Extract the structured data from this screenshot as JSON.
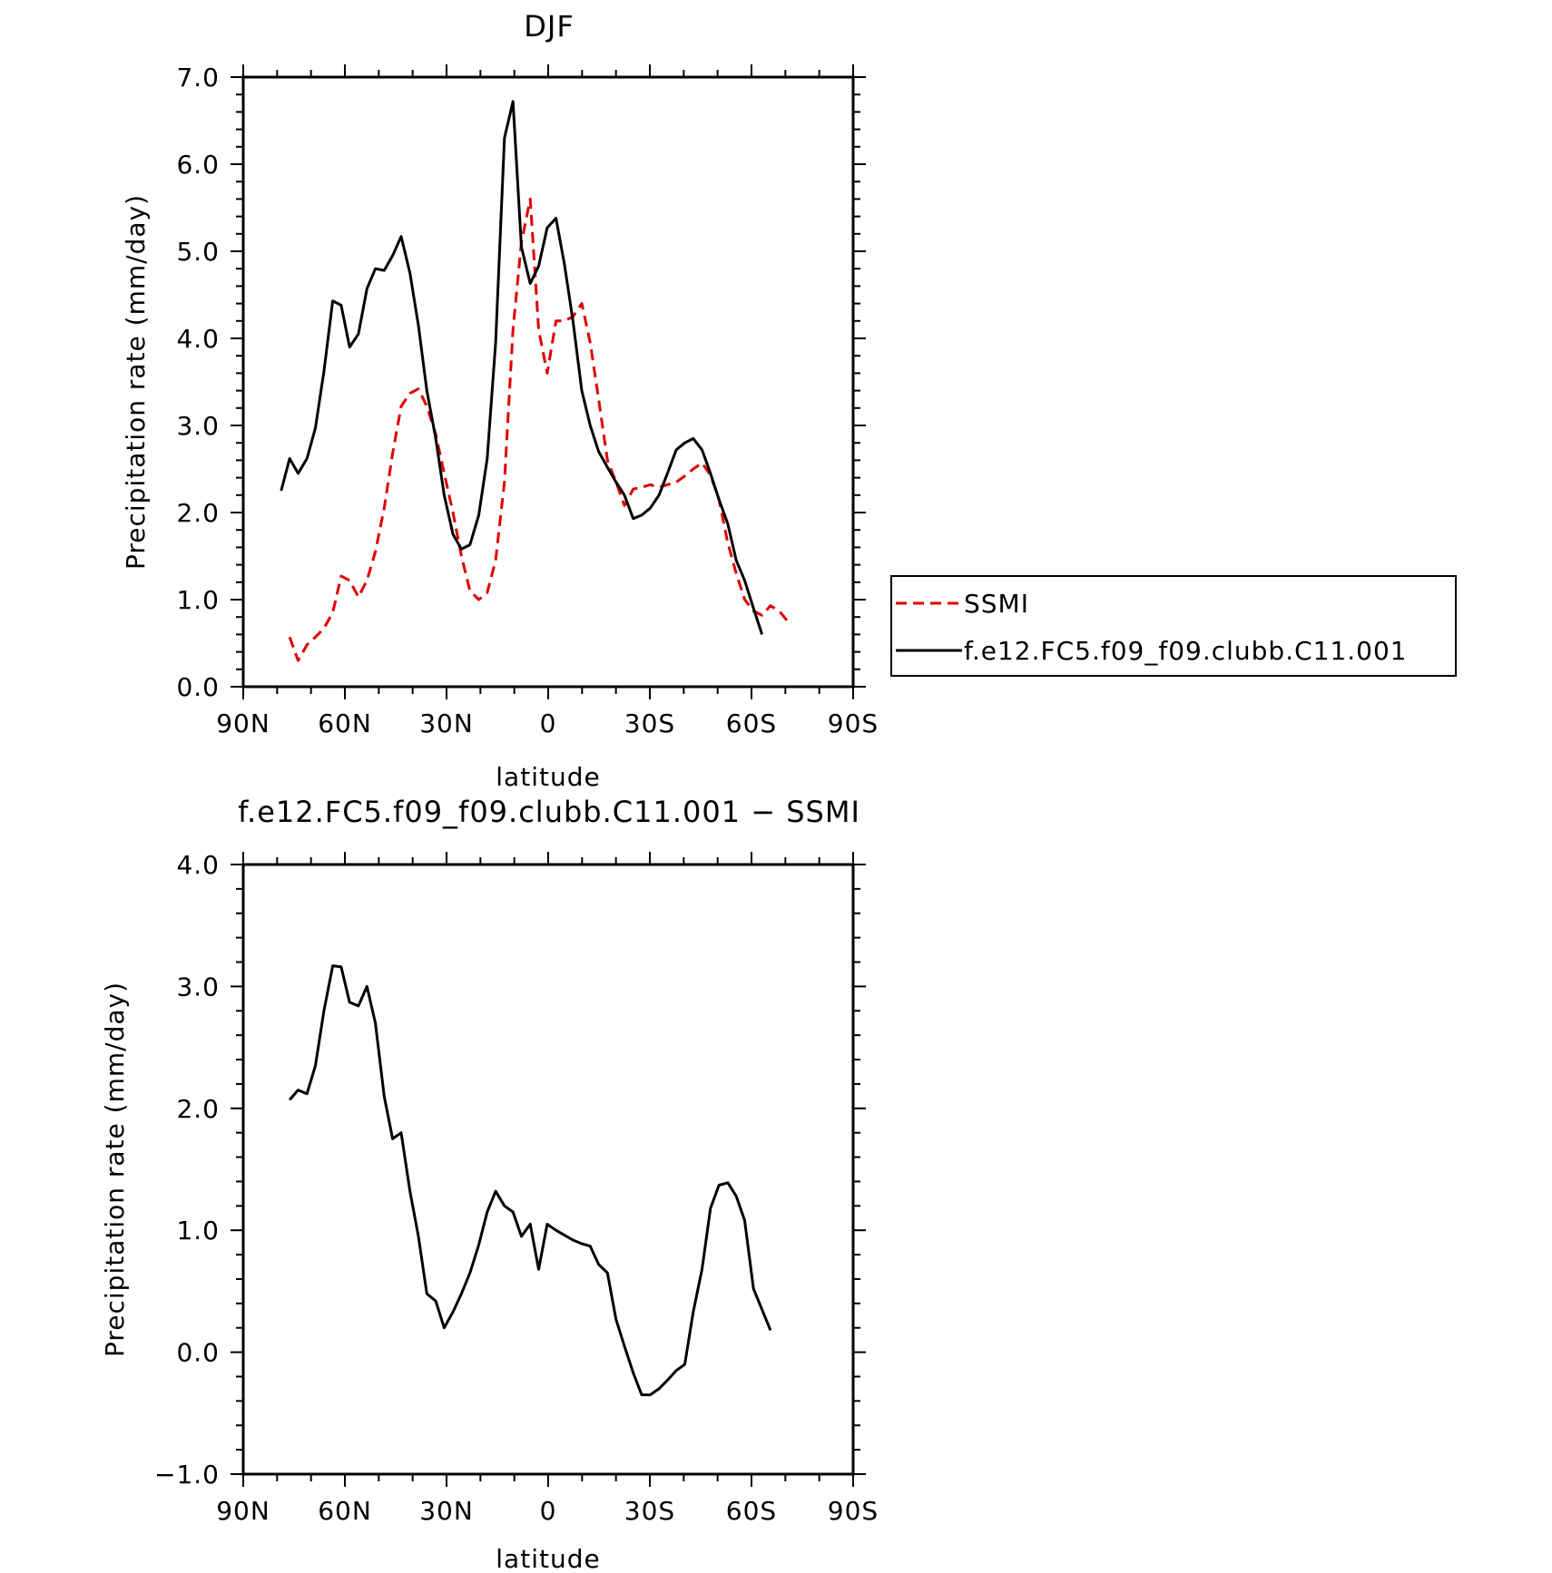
{
  "chart_data": [
    {
      "type": "line",
      "title": "DJF",
      "xlabel": "latitude",
      "ylabel": "Precipitation rate (mm/day)",
      "xlim": [
        -90,
        90
      ],
      "ylim": [
        0,
        7
      ],
      "x_ticks": [
        {
          "value": -90,
          "label": "90N"
        },
        {
          "value": -60,
          "label": "60N"
        },
        {
          "value": -30,
          "label": "30N"
        },
        {
          "value": 0,
          "label": "0"
        },
        {
          "value": 30,
          "label": "30S"
        },
        {
          "value": 60,
          "label": "60S"
        },
        {
          "value": 90,
          "label": "90S"
        }
      ],
      "y_ticks": [
        {
          "value": 0,
          "label": "0.0"
        },
        {
          "value": 1,
          "label": "1.0"
        },
        {
          "value": 2,
          "label": "2.0"
        },
        {
          "value": 3,
          "label": "3.0"
        },
        {
          "value": 4,
          "label": "4.0"
        },
        {
          "value": 5,
          "label": "5.0"
        },
        {
          "value": 6,
          "label": "6.0"
        },
        {
          "value": 7,
          "label": "7.0"
        }
      ],
      "legend": {
        "placement": "right"
      },
      "series": [
        {
          "name": "SSMI",
          "color": "#e00000",
          "style": "dashed",
          "points": [
            [
              -76.3,
              0.57
            ],
            [
              -73.8,
              0.3
            ],
            [
              -71.2,
              0.48
            ],
            [
              -68.7,
              0.57
            ],
            [
              -66.2,
              0.67
            ],
            [
              -63.6,
              0.85
            ],
            [
              -61.1,
              1.27
            ],
            [
              -58.6,
              1.22
            ],
            [
              -56.0,
              1.03
            ],
            [
              -53.5,
              1.22
            ],
            [
              -51.0,
              1.55
            ],
            [
              -48.4,
              2.05
            ],
            [
              -45.9,
              2.68
            ],
            [
              -43.4,
              3.22
            ],
            [
              -40.8,
              3.37
            ],
            [
              -38.3,
              3.42
            ],
            [
              -35.8,
              3.22
            ],
            [
              -33.2,
              2.9
            ],
            [
              -30.7,
              2.45
            ],
            [
              -28.1,
              2.0
            ],
            [
              -25.6,
              1.5
            ],
            [
              -23.1,
              1.1
            ],
            [
              -20.5,
              1.0
            ],
            [
              -18.0,
              1.08
            ],
            [
              -15.5,
              1.45
            ],
            [
              -12.9,
              2.35
            ],
            [
              -10.4,
              4.1
            ],
            [
              -7.9,
              5.1
            ],
            [
              -5.3,
              5.6
            ],
            [
              -2.8,
              4.1
            ],
            [
              -0.3,
              3.6
            ],
            [
              2.3,
              4.2
            ],
            [
              4.8,
              4.2
            ],
            [
              7.3,
              4.25
            ],
            [
              9.9,
              4.4
            ],
            [
              12.4,
              3.95
            ],
            [
              14.9,
              3.3
            ],
            [
              17.5,
              2.6
            ],
            [
              20.0,
              2.35
            ],
            [
              22.5,
              2.08
            ],
            [
              25.1,
              2.27
            ],
            [
              27.6,
              2.29
            ],
            [
              30.1,
              2.32
            ],
            [
              32.7,
              2.29
            ],
            [
              35.2,
              2.32
            ],
            [
              37.8,
              2.35
            ],
            [
              40.3,
              2.42
            ],
            [
              42.8,
              2.5
            ],
            [
              45.4,
              2.57
            ],
            [
              47.9,
              2.43
            ],
            [
              50.4,
              2.15
            ],
            [
              53.0,
              1.65
            ],
            [
              55.5,
              1.3
            ],
            [
              58.0,
              1.0
            ],
            [
              60.6,
              0.87
            ],
            [
              63.1,
              0.82
            ],
            [
              65.6,
              0.93
            ],
            [
              68.2,
              0.87
            ],
            [
              70.7,
              0.75
            ]
          ]
        },
        {
          "name": "f.e12.FC5.f09_f09.clubb.C11.001",
          "color": "#000000",
          "style": "solid",
          "points": [
            [
              -78.8,
              2.25
            ],
            [
              -76.3,
              2.62
            ],
            [
              -73.8,
              2.45
            ],
            [
              -71.2,
              2.62
            ],
            [
              -68.7,
              2.97
            ],
            [
              -66.2,
              3.62
            ],
            [
              -63.6,
              4.43
            ],
            [
              -61.1,
              4.38
            ],
            [
              -58.6,
              3.9
            ],
            [
              -56.0,
              4.05
            ],
            [
              -53.5,
              4.57
            ],
            [
              -51.0,
              4.8
            ],
            [
              -48.4,
              4.78
            ],
            [
              -45.9,
              4.95
            ],
            [
              -43.4,
              5.17
            ],
            [
              -40.8,
              4.75
            ],
            [
              -38.3,
              4.15
            ],
            [
              -35.8,
              3.4
            ],
            [
              -33.2,
              2.85
            ],
            [
              -30.7,
              2.2
            ],
            [
              -28.1,
              1.75
            ],
            [
              -25.6,
              1.58
            ],
            [
              -23.1,
              1.63
            ],
            [
              -20.5,
              1.97
            ],
            [
              -18.0,
              2.62
            ],
            [
              -15.5,
              3.95
            ],
            [
              -12.9,
              6.3
            ],
            [
              -10.4,
              6.72
            ],
            [
              -7.9,
              5.05
            ],
            [
              -5.3,
              4.63
            ],
            [
              -2.8,
              4.83
            ],
            [
              -0.3,
              5.27
            ],
            [
              2.3,
              5.38
            ],
            [
              4.8,
              4.85
            ],
            [
              7.3,
              4.2
            ],
            [
              9.9,
              3.4
            ],
            [
              12.4,
              3.0
            ],
            [
              14.9,
              2.7
            ],
            [
              17.5,
              2.52
            ],
            [
              20.0,
              2.35
            ],
            [
              22.5,
              2.2
            ],
            [
              25.1,
              1.93
            ],
            [
              27.6,
              1.97
            ],
            [
              30.1,
              2.05
            ],
            [
              32.7,
              2.2
            ],
            [
              35.2,
              2.45
            ],
            [
              37.8,
              2.72
            ],
            [
              40.3,
              2.8
            ],
            [
              42.8,
              2.85
            ],
            [
              45.4,
              2.72
            ],
            [
              47.9,
              2.45
            ],
            [
              50.4,
              2.15
            ],
            [
              53.0,
              1.87
            ],
            [
              55.5,
              1.45
            ],
            [
              58.0,
              1.22
            ],
            [
              60.6,
              0.9
            ],
            [
              63.1,
              0.6
            ]
          ]
        }
      ]
    },
    {
      "type": "line",
      "title": "f.e12.FC5.f09_f09.clubb.C11.001 − SSMI",
      "xlabel": "latitude",
      "ylabel": "Precipitation rate (mm/day)",
      "xlim": [
        -90,
        90
      ],
      "ylim": [
        -1,
        4
      ],
      "x_ticks": [
        {
          "value": -90,
          "label": "90N"
        },
        {
          "value": -60,
          "label": "60N"
        },
        {
          "value": -30,
          "label": "30N"
        },
        {
          "value": 0,
          "label": "0"
        },
        {
          "value": 30,
          "label": "30S"
        },
        {
          "value": 60,
          "label": "60S"
        },
        {
          "value": 90,
          "label": "90S"
        }
      ],
      "y_ticks": [
        {
          "value": -1,
          "label": "−1.0"
        },
        {
          "value": 0,
          "label": "0.0"
        },
        {
          "value": 1,
          "label": "1.0"
        },
        {
          "value": 2,
          "label": "2.0"
        },
        {
          "value": 3,
          "label": "3.0"
        },
        {
          "value": 4,
          "label": "4.0"
        }
      ],
      "series": [
        {
          "color": "#000000",
          "style": "solid",
          "points": [
            [
              -76.3,
              2.07
            ],
            [
              -73.8,
              2.15
            ],
            [
              -71.2,
              2.12
            ],
            [
              -68.7,
              2.35
            ],
            [
              -66.2,
              2.8
            ],
            [
              -63.6,
              3.17
            ],
            [
              -61.1,
              3.16
            ],
            [
              -58.6,
              2.87
            ],
            [
              -56.0,
              2.84
            ],
            [
              -53.5,
              3.0
            ],
            [
              -51.0,
              2.7
            ],
            [
              -48.4,
              2.1
            ],
            [
              -45.9,
              1.75
            ],
            [
              -43.4,
              1.8
            ],
            [
              -40.8,
              1.32
            ],
            [
              -38.3,
              0.95
            ],
            [
              -35.8,
              0.48
            ],
            [
              -33.2,
              0.42
            ],
            [
              -30.7,
              0.2
            ],
            [
              -28.1,
              0.33
            ],
            [
              -25.6,
              0.48
            ],
            [
              -23.1,
              0.65
            ],
            [
              -20.5,
              0.88
            ],
            [
              -18.0,
              1.15
            ],
            [
              -15.5,
              1.32
            ],
            [
              -12.9,
              1.2
            ],
            [
              -10.4,
              1.15
            ],
            [
              -7.9,
              0.95
            ],
            [
              -5.3,
              1.05
            ],
            [
              -2.8,
              0.68
            ],
            [
              -0.3,
              1.05
            ],
            [
              2.3,
              1.0
            ],
            [
              4.8,
              0.96
            ],
            [
              7.3,
              0.92
            ],
            [
              9.9,
              0.89
            ],
            [
              12.4,
              0.87
            ],
            [
              14.9,
              0.72
            ],
            [
              17.5,
              0.65
            ],
            [
              20.0,
              0.27
            ],
            [
              22.5,
              0.05
            ],
            [
              25.1,
              -0.17
            ],
            [
              27.6,
              -0.35
            ],
            [
              30.1,
              -0.35
            ],
            [
              32.7,
              -0.3
            ],
            [
              35.2,
              -0.23
            ],
            [
              37.8,
              -0.15
            ],
            [
              40.3,
              -0.1
            ],
            [
              42.8,
              0.33
            ],
            [
              45.4,
              0.68
            ],
            [
              47.9,
              1.18
            ],
            [
              50.4,
              1.37
            ],
            [
              53.0,
              1.39
            ],
            [
              55.5,
              1.28
            ],
            [
              58.0,
              1.08
            ],
            [
              60.6,
              0.52
            ],
            [
              63.1,
              0.35
            ],
            [
              65.6,
              0.18
            ]
          ]
        }
      ]
    }
  ]
}
